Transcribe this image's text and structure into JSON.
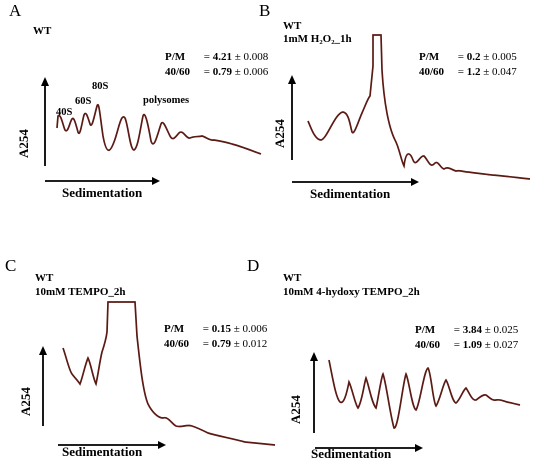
{
  "chart_data": [
    {
      "panel": "A",
      "type": "line",
      "strain": "WT",
      "treatment": "",
      "xlabel": "Sedimentation",
      "ylabel": "A254",
      "stats": [
        {
          "label": "P/M",
          "value": "4.21",
          "error": "0.008"
        },
        {
          "label": "40/60",
          "value": "0.79",
          "error": "0.006"
        }
      ],
      "peak_labels": [
        "40S",
        "60S",
        "80S",
        "polysomes"
      ],
      "grid": false,
      "color": "#5b1a14"
    },
    {
      "panel": "B",
      "type": "line",
      "strain": "WT",
      "treatment": "1mM H₂O₂_1h",
      "xlabel": "Sedimentation",
      "ylabel": "A254",
      "stats": [
        {
          "label": "P/M",
          "value": "0.2",
          "error": "0.005"
        },
        {
          "label": "40/60",
          "value": "1.2",
          "error": "0.047"
        }
      ],
      "grid": false,
      "color": "#5b1a14"
    },
    {
      "panel": "C",
      "type": "line",
      "strain": "WT",
      "treatment": "10mM TEMPO_2h",
      "xlabel": "Sedimentation",
      "ylabel": "A254",
      "stats": [
        {
          "label": "P/M",
          "value": "0.15",
          "error": "0.006"
        },
        {
          "label": "40/60",
          "value": "0.79",
          "error": "0.012"
        }
      ],
      "grid": false,
      "color": "#5b1a14"
    },
    {
      "panel": "D",
      "type": "line",
      "strain": "WT",
      "treatment": "10mM 4-hydoxy TEMPO_2h",
      "xlabel": "Sedimentation",
      "ylabel": "A254",
      "stats": [
        {
          "label": "P/M",
          "value": "3.84",
          "error": "0.025"
        },
        {
          "label": "40/60",
          "value": "1.09",
          "error": "0.027"
        }
      ],
      "grid": false,
      "color": "#5b1a14"
    }
  ]
}
